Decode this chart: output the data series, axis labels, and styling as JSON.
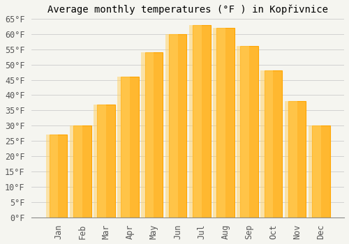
{
  "title": "Average monthly temperatures (°F ) in Kopřivnice",
  "months": [
    "Jan",
    "Feb",
    "Mar",
    "Apr",
    "May",
    "Jun",
    "Jul",
    "Aug",
    "Sep",
    "Oct",
    "Nov",
    "Dec"
  ],
  "values": [
    27,
    30,
    37,
    46,
    54,
    60,
    63,
    62,
    56,
    48,
    38,
    30
  ],
  "bar_color": "#FFA500",
  "bar_face_color": "#FFB830",
  "background_color": "#F5F5F0",
  "grid_color": "#CCCCCC",
  "ylim": [
    0,
    65
  ],
  "yticks": [
    0,
    5,
    10,
    15,
    20,
    25,
    30,
    35,
    40,
    45,
    50,
    55,
    60,
    65
  ],
  "ytick_labels": [
    "0°F",
    "5°F",
    "10°F",
    "15°F",
    "20°F",
    "25°F",
    "30°F",
    "35°F",
    "40°F",
    "45°F",
    "50°F",
    "55°F",
    "60°F",
    "65°F"
  ],
  "title_fontsize": 10,
  "tick_fontsize": 8.5,
  "font_family": "monospace",
  "bar_width": 0.75
}
